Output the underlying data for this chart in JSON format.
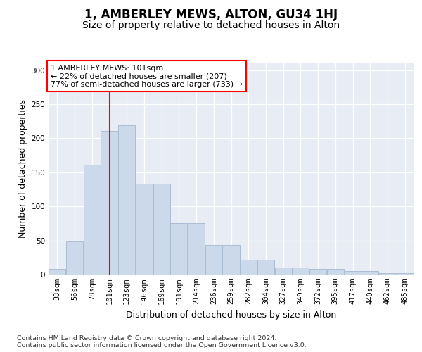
{
  "title": "1, AMBERLEY MEWS, ALTON, GU34 1HJ",
  "subtitle": "Size of property relative to detached houses in Alton",
  "xlabel": "Distribution of detached houses by size in Alton",
  "ylabel": "Number of detached properties",
  "categories": [
    "33sqm",
    "56sqm",
    "78sqm",
    "101sqm",
    "123sqm",
    "146sqm",
    "169sqm",
    "191sqm",
    "214sqm",
    "236sqm",
    "259sqm",
    "282sqm",
    "304sqm",
    "327sqm",
    "349sqm",
    "372sqm",
    "395sqm",
    "417sqm",
    "440sqm",
    "462sqm",
    "485sqm"
  ],
  "values": [
    8,
    49,
    161,
    211,
    219,
    133,
    133,
    75,
    75,
    43,
    43,
    22,
    22,
    10,
    10,
    8,
    8,
    5,
    5,
    2,
    2
  ],
  "bar_color": "#ccd9ea",
  "bar_edge_color": "#aabdd4",
  "red_line_index": 3,
  "annotation_line1": "1 AMBERLEY MEWS: 101sqm",
  "annotation_line2": "← 22% of detached houses are smaller (207)",
  "annotation_line3": "77% of semi-detached houses are larger (733) →",
  "ylim_max": 310,
  "yticks": [
    0,
    50,
    100,
    150,
    200,
    250,
    300
  ],
  "footer_line1": "Contains HM Land Registry data © Crown copyright and database right 2024.",
  "footer_line2": "Contains public sector information licensed under the Open Government Licence v3.0.",
  "plot_bg_color": "#e8edf5",
  "title_fontsize": 12,
  "subtitle_fontsize": 10,
  "axis_label_fontsize": 9,
  "tick_fontsize": 7.5,
  "annotation_fontsize": 8,
  "footer_fontsize": 6.8
}
